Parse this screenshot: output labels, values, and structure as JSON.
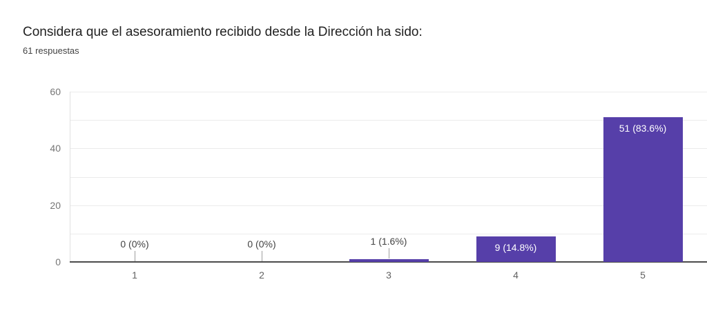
{
  "header": {
    "title": "Considera que el asesoramiento recibido desde la Dirección ha sido:",
    "subtitle": "61 respuestas"
  },
  "chart_data": {
    "type": "bar",
    "title": "Considera que el asesoramiento recibido desde la Dirección ha sido:",
    "subtitle": "61 respuestas",
    "categories": [
      "1",
      "2",
      "3",
      "4",
      "5"
    ],
    "values": [
      0,
      0,
      1,
      9,
      51
    ],
    "bar_labels": [
      "0 (0%)",
      "0 (0%)",
      "1 (1.6%)",
      "9 (14.8%)",
      "51 (83.6%)"
    ],
    "bar_label_placement": [
      "outside",
      "outside",
      "outside",
      "inside",
      "inside"
    ],
    "xlabel": "",
    "ylabel": "",
    "ylim": [
      0,
      60
    ],
    "yticks": [
      0,
      20,
      40,
      60
    ],
    "grid_step": 10,
    "grid": true,
    "legend": "none",
    "colors": {
      "bar": "#563fa9",
      "bar_label_inside": "#ffffff",
      "bar_label_outside": "#424242",
      "axis_line": "#4a4a4a",
      "gridline": "#ebebeb",
      "plot_border": "#e0e0e0",
      "y_tick_label": "#757575",
      "x_tick_label": "#616161",
      "leader_line": "#9e9e9e",
      "background": "#ffffff"
    }
  }
}
